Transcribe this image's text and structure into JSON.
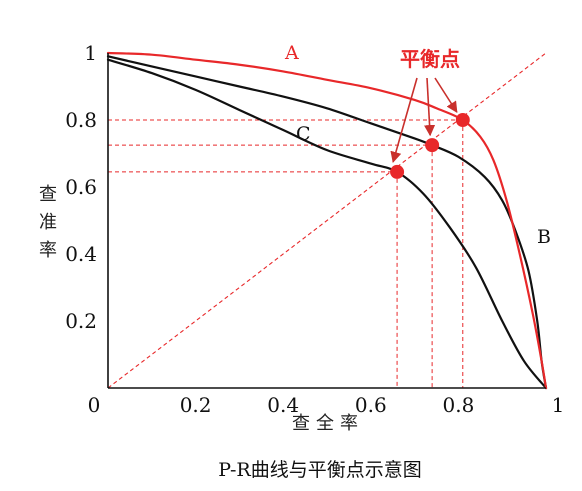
{
  "chart_data": {
    "type": "line",
    "title": "P-R曲线与平衡点示意图",
    "xlabel": "查全率",
    "ylabel": "查准率",
    "xlim": [
      0,
      1
    ],
    "ylim": [
      0,
      1
    ],
    "x_ticks": [
      {
        "value": 0,
        "label": "0"
      },
      {
        "value": 0.2,
        "label": "0.2"
      },
      {
        "value": 0.4,
        "label": "0.4"
      },
      {
        "value": 0.6,
        "label": "0.6"
      },
      {
        "value": 0.8,
        "label": "0.8"
      },
      {
        "value": 1,
        "label": "1"
      }
    ],
    "y_ticks": [
      {
        "value": 0.2,
        "label": "0.2"
      },
      {
        "value": 0.4,
        "label": "0.4"
      },
      {
        "value": 0.6,
        "label": "0.6"
      },
      {
        "value": 0.8,
        "label": "0.8"
      },
      {
        "value": 1,
        "label": "1"
      }
    ],
    "grid": false,
    "series": [
      {
        "name": "A",
        "color": "#e8282a",
        "x": [
          0,
          0.1,
          0.2,
          0.3,
          0.4,
          0.5,
          0.6,
          0.7,
          0.75,
          0.81,
          0.85,
          0.88,
          0.91,
          0.94,
          0.97,
          0.99,
          1
        ],
        "y": [
          1,
          0.995,
          0.98,
          0.965,
          0.945,
          0.92,
          0.895,
          0.86,
          0.835,
          0.8,
          0.75,
          0.68,
          0.56,
          0.4,
          0.22,
          0.08,
          0
        ]
      },
      {
        "name": "B",
        "color": "#111111",
        "x": [
          0,
          0.1,
          0.2,
          0.3,
          0.4,
          0.5,
          0.6,
          0.7,
          0.74,
          0.8,
          0.86,
          0.9,
          0.93,
          0.96,
          0.98,
          0.99,
          1
        ],
        "y": [
          0.99,
          0.96,
          0.93,
          0.9,
          0.87,
          0.835,
          0.79,
          0.745,
          0.725,
          0.69,
          0.63,
          0.56,
          0.47,
          0.35,
          0.2,
          0.08,
          0
        ]
      },
      {
        "name": "C",
        "color": "#111111",
        "x": [
          0,
          0.1,
          0.2,
          0.3,
          0.4,
          0.5,
          0.6,
          0.66,
          0.72,
          0.78,
          0.84,
          0.9,
          0.95,
          1
        ],
        "y": [
          0.98,
          0.94,
          0.89,
          0.83,
          0.77,
          0.71,
          0.67,
          0.645,
          0.58,
          0.48,
          0.36,
          0.2,
          0.08,
          0
        ]
      }
    ],
    "reference_line": {
      "type": "y=x",
      "color": "#e8282a",
      "style": "dashed"
    },
    "break_even_points": [
      {
        "series": "A",
        "x": 0.81,
        "y": 0.8
      },
      {
        "series": "B",
        "x": 0.74,
        "y": 0.725
      },
      {
        "series": "C",
        "x": 0.66,
        "y": 0.645
      }
    ],
    "annotation": {
      "text": "平衡点",
      "color": "#e8282a"
    },
    "curve_labels": [
      {
        "text": "A",
        "color": "#e8282a"
      },
      {
        "text": "B",
        "color": "#111111"
      },
      {
        "text": "C",
        "color": "#111111"
      }
    ]
  }
}
